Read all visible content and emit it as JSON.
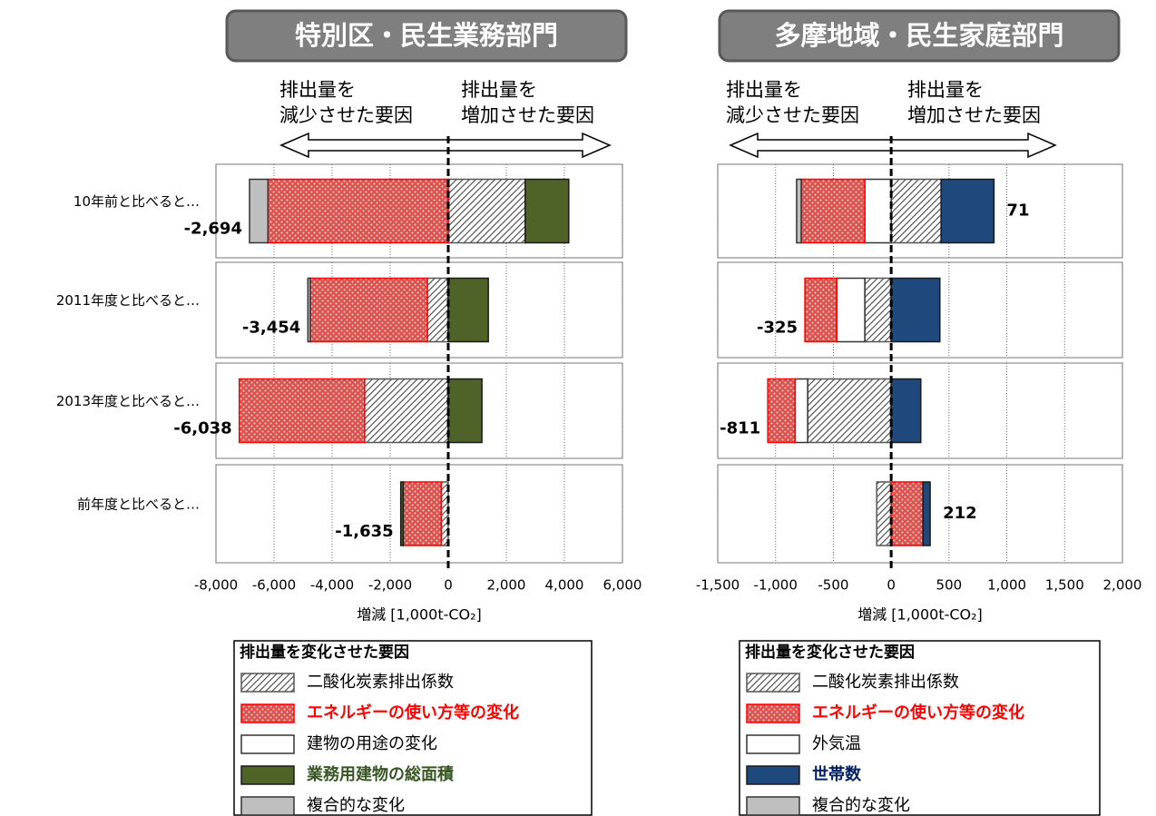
{
  "chart_data": [
    {
      "type": "diverging-bar",
      "title": "特別区・民生業務部門",
      "decrease_label": [
        "排出量を",
        "減少させた要因"
      ],
      "increase_label": [
        "排出量を",
        "増加させた要因"
      ],
      "categories": [
        "10年前と比べると…",
        "2011年度と比べると…",
        "2013年度と比べると…",
        "前年度と比べると…"
      ],
      "series": [
        {
          "name": "二酸化炭素排出係数",
          "color": "#ffffff",
          "pattern": "hatch",
          "label_color": "#000000",
          "values": [
            2650,
            -720,
            -2880,
            -240
          ]
        },
        {
          "name": "エネルギーの使い方等の変化",
          "color": "#d9534f",
          "pattern": "dots",
          "label_color": "#ff0000",
          "values": [
            -6210,
            -4030,
            -4318,
            -1310
          ]
        },
        {
          "name": "建物の用途の変化",
          "color": "#ffffff",
          "label_color": "#000000",
          "values": [
            0,
            0,
            0,
            0
          ]
        },
        {
          "name": "業務用建物の総面積",
          "color": "#4f6228",
          "label_color": "#375623",
          "values": [
            1500,
            1380,
            1160,
            -85
          ]
        },
        {
          "name": "複合的な変化",
          "color": "#bfbfbf",
          "label_color": "#000000",
          "values": [
            -634,
            -84,
            0,
            0
          ]
        }
      ],
      "totals": [
        -2694,
        -3454,
        -6038,
        -1635
      ],
      "total_labels": [
        "-2,694",
        "-3,454",
        "-6,038",
        "-1,635"
      ],
      "xlim": [
        -8000,
        6000
      ],
      "xticks": [
        {
          "value": -8000,
          "label": "-8,000"
        },
        {
          "value": -6000,
          "label": "-6,000"
        },
        {
          "value": -4000,
          "label": "-4,000"
        },
        {
          "value": -2000,
          "label": "-2,000"
        },
        0,
        {
          "value": 2000,
          "label": "2,000"
        },
        {
          "value": 4000,
          "label": "4,000"
        },
        {
          "value": 6000,
          "label": "6,000"
        }
      ],
      "x_label": "増減 [1,000t-CO₂]",
      "grid": true,
      "legend_title": "排出量を変化させた要因"
    },
    {
      "type": "diverging-bar",
      "title": "多摩地域・民生家庭部門",
      "decrease_label": [
        "排出量を",
        "減少させた要因"
      ],
      "increase_label": [
        "排出量を",
        "増加させた要因"
      ],
      "categories": [
        null,
        null,
        null,
        null
      ],
      "series": [
        {
          "name": "二酸化炭素排出係数",
          "color": "#ffffff",
          "pattern": "hatch",
          "label_color": "#000000",
          "values": [
            432,
            -228,
            -722,
            -125
          ]
        },
        {
          "name": "エネルギーの使い方等の変化",
          "color": "#d9534f",
          "pattern": "dots",
          "label_color": "#ff0000",
          "values": [
            -550,
            -275,
            -235,
            275
          ]
        },
        {
          "name": "外気温",
          "color": "#ffffff",
          "label_color": "#000000",
          "values": [
            -228,
            -243,
            -110,
            0
          ]
        },
        {
          "name": "世帯数",
          "color": "#1f497d",
          "label_color": "#002060",
          "values": [
            457,
            421,
            256,
            62
          ]
        },
        {
          "name": "複合的な変化",
          "color": "#bfbfbf",
          "label_color": "#000000",
          "values": [
            -40,
            0,
            0,
            0
          ]
        }
      ],
      "stack_order": [
        0,
        2,
        1,
        3,
        4
      ],
      "totals": [
        71,
        -325,
        -811,
        212
      ],
      "total_labels": [
        "71",
        "-325",
        "-811",
        "212"
      ],
      "xlim": [
        -1500,
        2000
      ],
      "xticks": [
        {
          "value": -1500,
          "label": "-1,500"
        },
        {
          "value": -1000,
          "label": "-1,000"
        },
        -500,
        0,
        500,
        {
          "value": 1000,
          "label": "1,000"
        },
        {
          "value": 1500,
          "label": "1,500"
        },
        {
          "value": 2000,
          "label": "2,000"
        }
      ],
      "x_label": "増減 [1,000t-CO₂]",
      "grid": true,
      "legend_title": "排出量を変化させた要因"
    }
  ]
}
